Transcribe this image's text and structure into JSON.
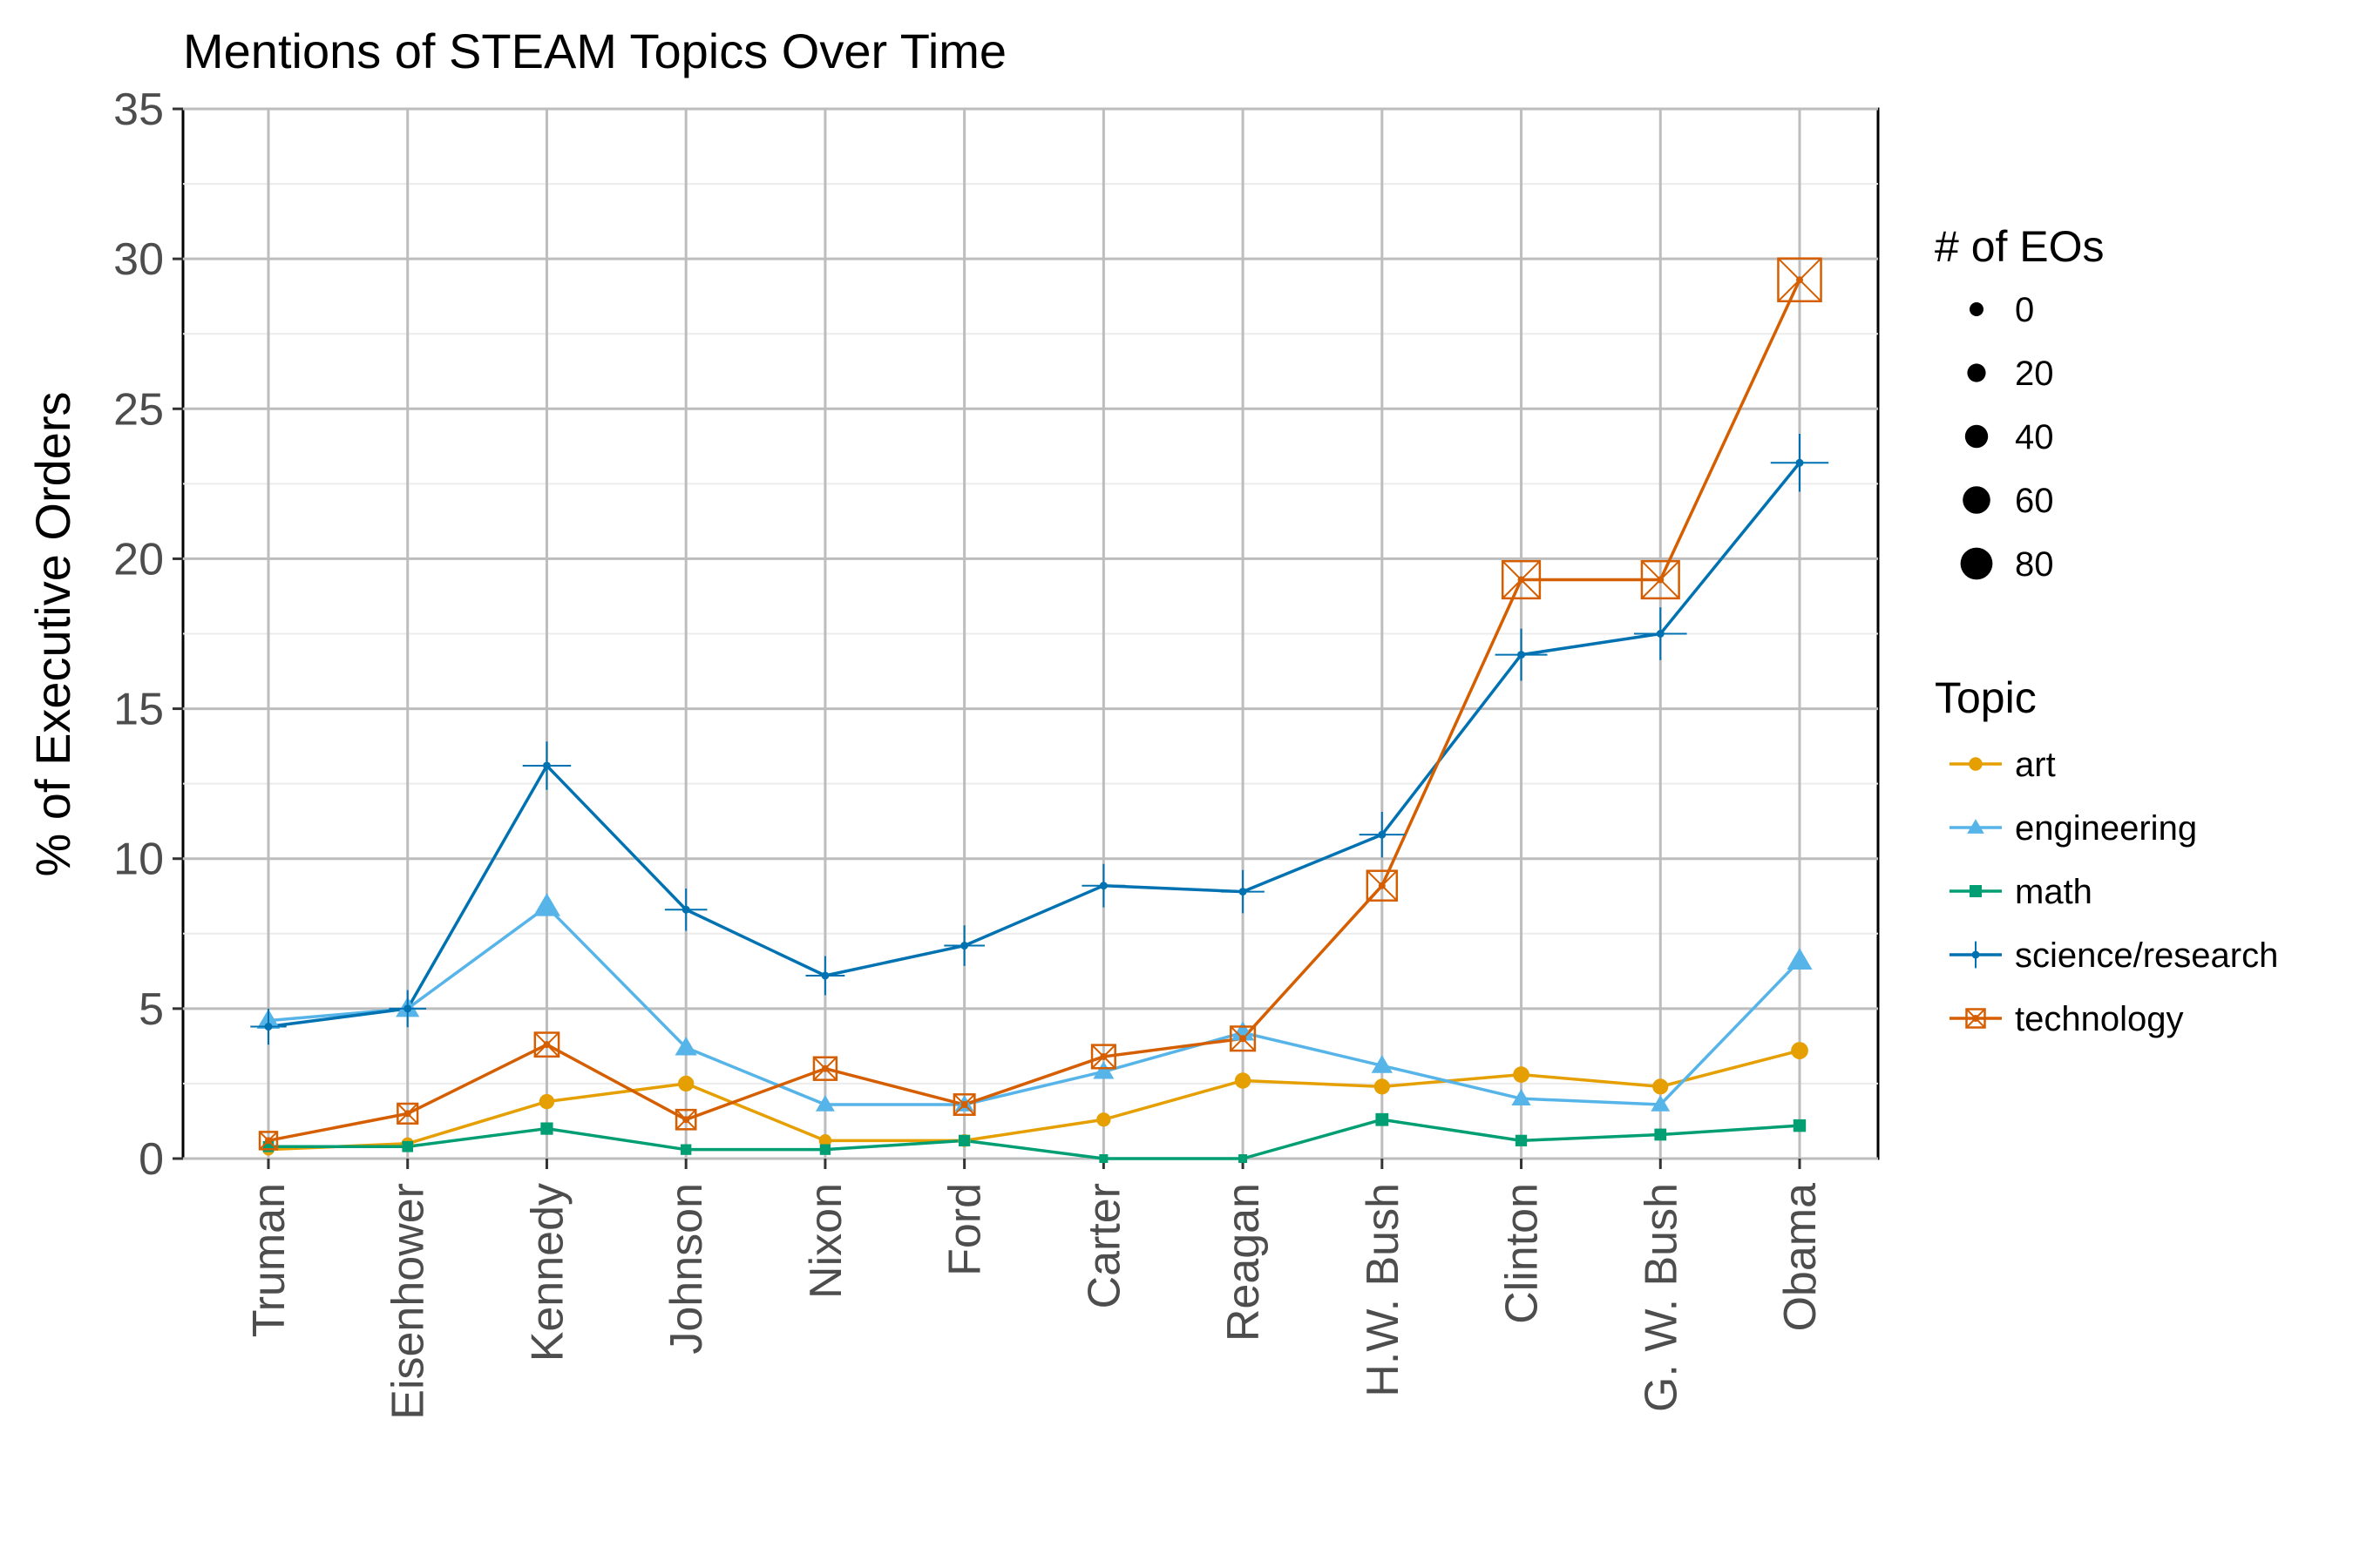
{
  "chart_data": {
    "type": "line",
    "title": "Mentions of STEAM Topics Over Time",
    "xlabel": "",
    "ylabel": "% of Executive Orders",
    "ylim": [
      0,
      35
    ],
    "yticks": [
      0,
      5,
      10,
      15,
      20,
      25,
      30,
      35
    ],
    "categories": [
      "Truman",
      "Eisenhower",
      "Kennedy",
      "Johnson",
      "Nixon",
      "Ford",
      "Carter",
      "Reagan",
      "H.W. Bush",
      "Clinton",
      "G. W. Bush",
      "Obama"
    ],
    "grid": true,
    "legend_position": "right",
    "size_legend": {
      "title": "# of EOs",
      "values": [
        0,
        20,
        40,
        60,
        80
      ]
    },
    "color_legend": {
      "title": "Topic"
    },
    "series": [
      {
        "name": "art",
        "color": "#E69F00",
        "marker": "circle",
        "values": [
          0.3,
          0.5,
          1.9,
          2.5,
          0.6,
          0.6,
          1.3,
          2.6,
          2.4,
          2.8,
          2.4,
          3.6
        ]
      },
      {
        "name": "engineering",
        "color": "#56B4E9",
        "marker": "triangle",
        "values": [
          4.6,
          5.0,
          8.4,
          3.7,
          1.8,
          1.8,
          2.9,
          4.2,
          3.1,
          2.0,
          1.8,
          6.6
        ]
      },
      {
        "name": "math",
        "color": "#009E73",
        "marker": "square",
        "values": [
          0.4,
          0.4,
          1.0,
          0.3,
          0.3,
          0.6,
          0.0,
          0.0,
          1.3,
          0.6,
          0.8,
          1.1
        ]
      },
      {
        "name": "science/research",
        "color": "#0072B2",
        "marker": "plus",
        "values": [
          4.4,
          5.0,
          13.1,
          8.3,
          6.1,
          7.1,
          9.1,
          8.9,
          10.8,
          16.8,
          17.5,
          23.2
        ]
      },
      {
        "name": "technology",
        "color": "#D55E00",
        "marker": "boxcross",
        "values": [
          0.6,
          1.5,
          3.8,
          1.3,
          3.0,
          1.8,
          3.4,
          4.0,
          9.1,
          19.3,
          19.3,
          29.3
        ]
      }
    ]
  }
}
